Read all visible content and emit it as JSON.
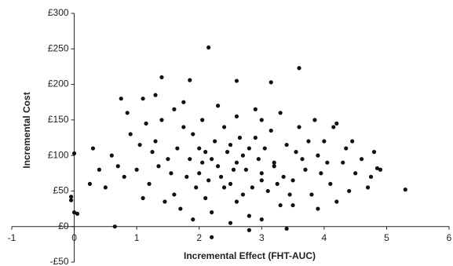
{
  "chart_data": {
    "type": "scatter",
    "xlabel": "Incremental Effect (FHT-AUC)",
    "ylabel": "Incremental Cost",
    "color": "#111111",
    "xlim": [
      -1,
      6
    ],
    "ylim": [
      -50,
      300
    ],
    "xticks": [
      -1,
      0,
      1,
      2,
      3,
      4,
      5,
      6
    ],
    "yticks": [
      {
        "value": -50,
        "label": "-£50"
      },
      {
        "value": 0,
        "label": "£0"
      },
      {
        "value": 50,
        "label": "£50"
      },
      {
        "value": 100,
        "label": "£100"
      },
      {
        "value": 150,
        "label": "£150"
      },
      {
        "value": 200,
        "label": "£200"
      },
      {
        "value": 250,
        "label": "£250"
      },
      {
        "value": 300,
        "label": "£300"
      }
    ],
    "x": [
      1.2,
      1.5,
      1.8,
      2.0,
      2.3,
      2.5,
      2.7,
      3.0,
      3.2,
      3.5,
      1.0,
      1.3,
      1.6,
      1.9,
      2.1,
      2.4,
      2.6,
      2.9,
      3.1,
      3.4,
      3.7,
      3.9,
      4.1,
      4.3,
      0.8,
      0.6,
      0.9,
      1.1,
      1.4,
      1.7,
      2.2,
      2.8,
      3.3,
      3.6,
      3.8,
      4.0,
      4.2,
      4.5,
      4.7,
      0.5,
      1.25,
      1.55,
      1.85,
      2.15,
      2.45,
      2.75,
      3.05,
      3.35,
      3.65,
      3.95,
      1.35,
      1.65,
      1.95,
      2.25,
      2.55,
      2.85,
      3.15,
      3.45,
      3.75,
      4.05,
      0.7,
      1.05,
      2.05,
      2.35,
      2.65,
      2.95,
      3.25,
      3.55,
      4.35,
      4.6,
      1.45,
      1.75,
      2.05,
      2.6,
      3.0,
      3.5,
      4.15,
      4.4,
      0.4,
      0.3,
      1.15,
      1.6,
      2.3,
      2.9,
      3.3,
      3.85,
      1.9,
      2.5,
      3.0,
      3.9,
      0.85,
      0.75,
      1.1,
      1.3,
      1.75,
      4.2,
      4.45,
      4.75,
      4.9,
      0.25,
      2.0,
      2.2,
      2.4,
      2.6,
      2.8,
      3.0,
      2.1,
      2.5,
      2.7,
      3.2,
      2.15,
      3.6,
      1.85,
      1.4,
      2.6,
      3.15,
      5.3,
      0.0,
      -0.05,
      0.0,
      0.05,
      2.2,
      3.4,
      2.8,
      0.65,
      4.85,
      4.8,
      -0.05
    ],
    "values": [
      60,
      95,
      70,
      110,
      85,
      60,
      100,
      75,
      90,
      65,
      80,
      120,
      45,
      130,
      40,
      140,
      35,
      125,
      50,
      115,
      80,
      100,
      60,
      90,
      70,
      100,
      130,
      40,
      150,
      25,
      20,
      15,
      30,
      140,
      45,
      120,
      35,
      75,
      55,
      55,
      105,
      75,
      95,
      65,
      105,
      80,
      110,
      70,
      95,
      75,
      85,
      110,
      55,
      120,
      80,
      55,
      135,
      45,
      120,
      90,
      85,
      115,
      90,
      70,
      125,
      95,
      60,
      105,
      110,
      95,
      35,
      140,
      150,
      155,
      150,
      30,
      140,
      50,
      80,
      110,
      145,
      165,
      170,
      165,
      160,
      150,
      10,
      5,
      10,
      25,
      160,
      180,
      180,
      185,
      175,
      145,
      120,
      70,
      80,
      60,
      75,
      95,
      55,
      90,
      110,
      65,
      105,
      115,
      45,
      85,
      252,
      223,
      206,
      210,
      205,
      203,
      52,
      103,
      42,
      20,
      18,
      -15,
      -3,
      -5,
      0,
      82,
      105,
      37
    ]
  }
}
